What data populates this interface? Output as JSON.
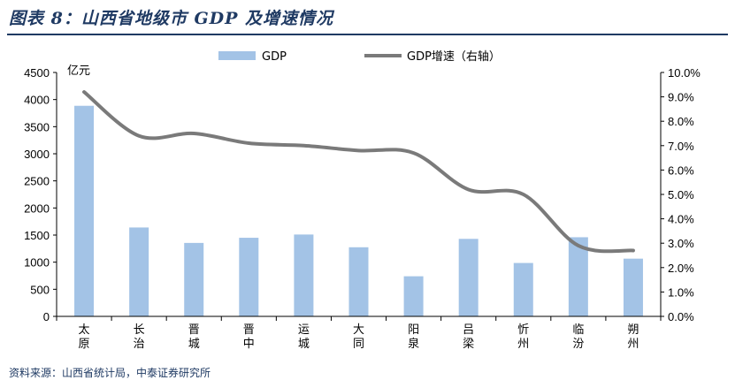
{
  "page": {
    "title": "图表 8：山西省地级市 GDP 及增速情况",
    "footer_note": "资料来源：山西省统计局，中泰证券研究所"
  },
  "chart_data": {
    "type": "bar",
    "categories": [
      "太原",
      "长治",
      "晋城",
      "晋中",
      "运城",
      "大同",
      "阳泉",
      "吕梁",
      "忻州",
      "临汾",
      "朔州"
    ],
    "y_unit_label": "亿元",
    "ylim": [
      0,
      4500
    ],
    "yticks": [
      0,
      500,
      1000,
      1500,
      2000,
      2500,
      3000,
      3500,
      4000,
      4500
    ],
    "y2lim": [
      0,
      10
    ],
    "y2ticks": [
      "0.0%",
      "1.0%",
      "2.0%",
      "3.0%",
      "4.0%",
      "5.0%",
      "6.0%",
      "7.0%",
      "8.0%",
      "9.0%",
      "10.0%"
    ],
    "legend_position": "top",
    "series": [
      {
        "name": "GDP",
        "type": "bar",
        "axis": "left",
        "color": "#a3c3e6",
        "values": [
          3885,
          1640,
          1355,
          1450,
          1510,
          1275,
          740,
          1430,
          985,
          1460,
          1065
        ]
      },
      {
        "name": "GDP增速（右轴）",
        "type": "line",
        "axis": "right",
        "color": "#7a7a7a",
        "values": [
          9.2,
          7.4,
          7.5,
          7.1,
          7.0,
          6.8,
          6.7,
          5.2,
          5.0,
          2.9,
          2.7
        ]
      }
    ]
  }
}
